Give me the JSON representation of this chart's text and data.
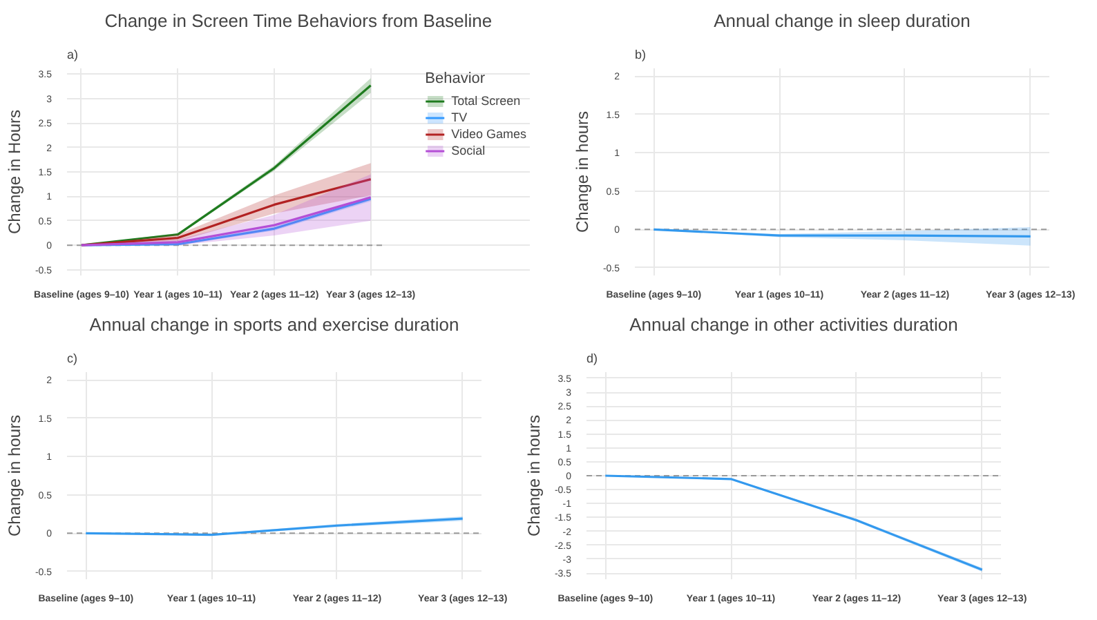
{
  "chart_data": [
    {
      "type": "line",
      "title": "Change in Screen Time Behaviors from Baseline",
      "ylabel": "Change in Hours",
      "legend_title": "Behavior",
      "annotations": [
        "a)"
      ],
      "categories": [
        "Baseline (ages 9–10)",
        "Year 1 (ages 10–11)",
        "Year 2 (ages 11–12)",
        "Year 3 (ages 12–13)"
      ],
      "series": [
        {
          "name": "Total Screen",
          "color": "#1e7b1e",
          "values": [
            0,
            0.22,
            1.58,
            3.27
          ],
          "lower": [
            0,
            0.2,
            1.53,
            3.12
          ],
          "upper": [
            0,
            0.25,
            1.63,
            3.42
          ]
        },
        {
          "name": "TV",
          "color": "#3399ff",
          "values": [
            0,
            0.02,
            0.34,
            0.95
          ],
          "lower": [
            0,
            0.0,
            0.3,
            0.9
          ],
          "upper": [
            0,
            0.04,
            0.38,
            1.0
          ]
        },
        {
          "name": "Video Games",
          "color": "#b22222",
          "values": [
            0,
            0.15,
            0.83,
            1.35
          ],
          "lower": [
            0,
            0.08,
            0.65,
            1.02
          ],
          "upper": [
            0,
            0.22,
            1.02,
            1.68
          ]
        },
        {
          "name": "Social",
          "color": "#b44fd6",
          "values": [
            0,
            0.06,
            0.41,
            0.98
          ],
          "lower": [
            0,
            0.0,
            0.2,
            0.5
          ],
          "upper": [
            0,
            0.12,
            0.62,
            1.45
          ]
        }
      ],
      "ylim": [
        -0.62,
        3.62
      ],
      "yticks": [
        -0.5,
        0,
        0.5,
        1,
        1.5,
        2,
        2.5,
        3,
        3.5
      ],
      "grid": true,
      "legend": "right",
      "ref_lines": [
        {
          "axis": "y",
          "value": 0,
          "label": null,
          "color": "#999999",
          "line_style": "dashed"
        }
      ]
    },
    {
      "type": "line",
      "title": "Annual change in sleep duration",
      "ylabel": "Change in hours",
      "annotations": [
        "b)"
      ],
      "categories": [
        "Baseline (ages 9–10)",
        "Year 1 (ages 10–11)",
        "Year 2 (ages 11–12)",
        "Year 3 (ages 12–13)"
      ],
      "series": [
        {
          "color": "#3399ee",
          "values": [
            0,
            -0.08,
            -0.08,
            -0.09
          ],
          "lower": [
            0,
            -0.1,
            -0.14,
            -0.21
          ],
          "upper": [
            0,
            -0.06,
            -0.02,
            0.03
          ]
        }
      ],
      "ylim": [
        -0.6,
        2.1
      ],
      "yticks": [
        -0.5,
        0,
        0.5,
        1,
        1.5,
        2
      ],
      "grid": true,
      "ref_lines": [
        {
          "axis": "y",
          "value": 0,
          "label": null,
          "color": "#999999",
          "line_style": "dashed"
        }
      ]
    },
    {
      "type": "line",
      "title": "Annual change in sports and exercise duration",
      "ylabel": "Change in hours",
      "annotations": [
        "c)"
      ],
      "categories": [
        "Baseline (ages 9–10)",
        "Year 1 (ages 10–11)",
        "Year 2 (ages 11–12)",
        "Year 3 (ages 12–13)"
      ],
      "series": [
        {
          "color": "#3399ee",
          "values": [
            0,
            -0.02,
            0.1,
            0.19
          ],
          "lower": [
            0,
            -0.03,
            0.08,
            0.16
          ],
          "upper": [
            0,
            -0.01,
            0.12,
            0.22
          ]
        }
      ],
      "ylim": [
        -0.6,
        2.1
      ],
      "yticks": [
        -0.5,
        0,
        0.5,
        1,
        1.5,
        2
      ],
      "grid": true,
      "ref_lines": [
        {
          "axis": "y",
          "value": 0,
          "label": null,
          "color": "#999999",
          "line_style": "dashed"
        }
      ]
    },
    {
      "type": "line",
      "title": "Annual change in other activities duration",
      "ylabel": "Change in hours",
      "annotations": [
        "d)"
      ],
      "categories": [
        "Baseline (ages 9–10)",
        "Year 1 (ages 10–11)",
        "Year 2 (ages 11–12)",
        "Year 3 (ages 12–13)"
      ],
      "series": [
        {
          "color": "#3399ee",
          "values": [
            0,
            -0.12,
            -1.6,
            -3.38
          ],
          "lower": [
            0,
            -0.15,
            -1.65,
            -3.45
          ],
          "upper": [
            0,
            -0.09,
            -1.55,
            -3.31
          ]
        }
      ],
      "ylim": [
        -3.72,
        3.72
      ],
      "yticks": [
        -3.5,
        -3,
        -2.5,
        -2,
        -1.5,
        -1,
        -0.5,
        0,
        0.5,
        1,
        1.5,
        2,
        2.5,
        3,
        3.5
      ],
      "grid": true,
      "ref_lines": [
        {
          "axis": "y",
          "value": 0,
          "label": null,
          "color": "#999999",
          "line_style": "dashed"
        }
      ]
    }
  ]
}
